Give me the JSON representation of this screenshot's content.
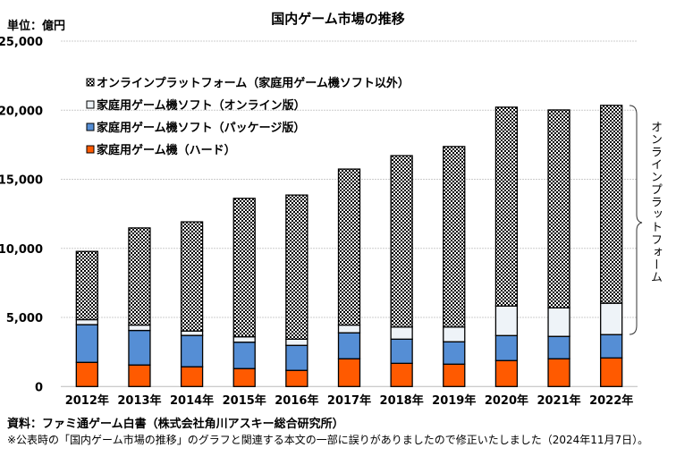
{
  "title": "国内ゲーム市場の推移",
  "unit": "単位：億円",
  "source": "資料：ファミ通ゲーム白書（株式会社角川アスキー総合研究所）",
  "note": "※公表時の「国内ゲーム市場の推移」のグラフと関連する本文の一部に誤りがありましたので修正いたしました（2024年11月7日）。",
  "brace_label": "オンラインプラットフォーム",
  "chart_data": {
    "type": "bar",
    "stacked": true,
    "title": "国内ゲーム市場の推移",
    "ylabel": "単位：億円",
    "ylim": [
      0,
      25000
    ],
    "yticks": [
      0,
      5000,
      10000,
      15000,
      20000,
      25000
    ],
    "ytick_labels": [
      "0",
      "5,000",
      "10,000",
      "15,000",
      "20,000",
      "25,000"
    ],
    "grid": true,
    "legend_position": "top-left",
    "categories": [
      "2012年",
      "2013年",
      "2014年",
      "2015年",
      "2016年",
      "2017年",
      "2018年",
      "2019年",
      "2020年",
      "2021年",
      "2022年"
    ],
    "series": [
      {
        "name": "家庭用ゲーム機（ハード）",
        "color": "#ff5a00",
        "values": [
          1750,
          1560,
          1430,
          1300,
          1170,
          2010,
          1680,
          1620,
          1880,
          2010,
          2070
        ]
      },
      {
        "name": "家庭用ゲーム機ソフト（パッケージ版）",
        "color": "#558ed5",
        "values": [
          2730,
          2500,
          2270,
          1910,
          1810,
          1880,
          1750,
          1620,
          1810,
          1620,
          1690
        ]
      },
      {
        "name": "家庭用ゲーム機ソフト（オンライン版）",
        "color": "#eef3f8",
        "values": [
          360,
          390,
          320,
          390,
          450,
          560,
          880,
          1070,
          2140,
          2070,
          2270
        ]
      },
      {
        "name": "オンラインプラットフォーム（家庭用ゲーム機ソフト以外）",
        "color": "checker",
        "values": [
          4940,
          7030,
          7900,
          10020,
          10430,
          11290,
          12400,
          13060,
          14390,
          14320,
          14320
        ]
      }
    ]
  }
}
